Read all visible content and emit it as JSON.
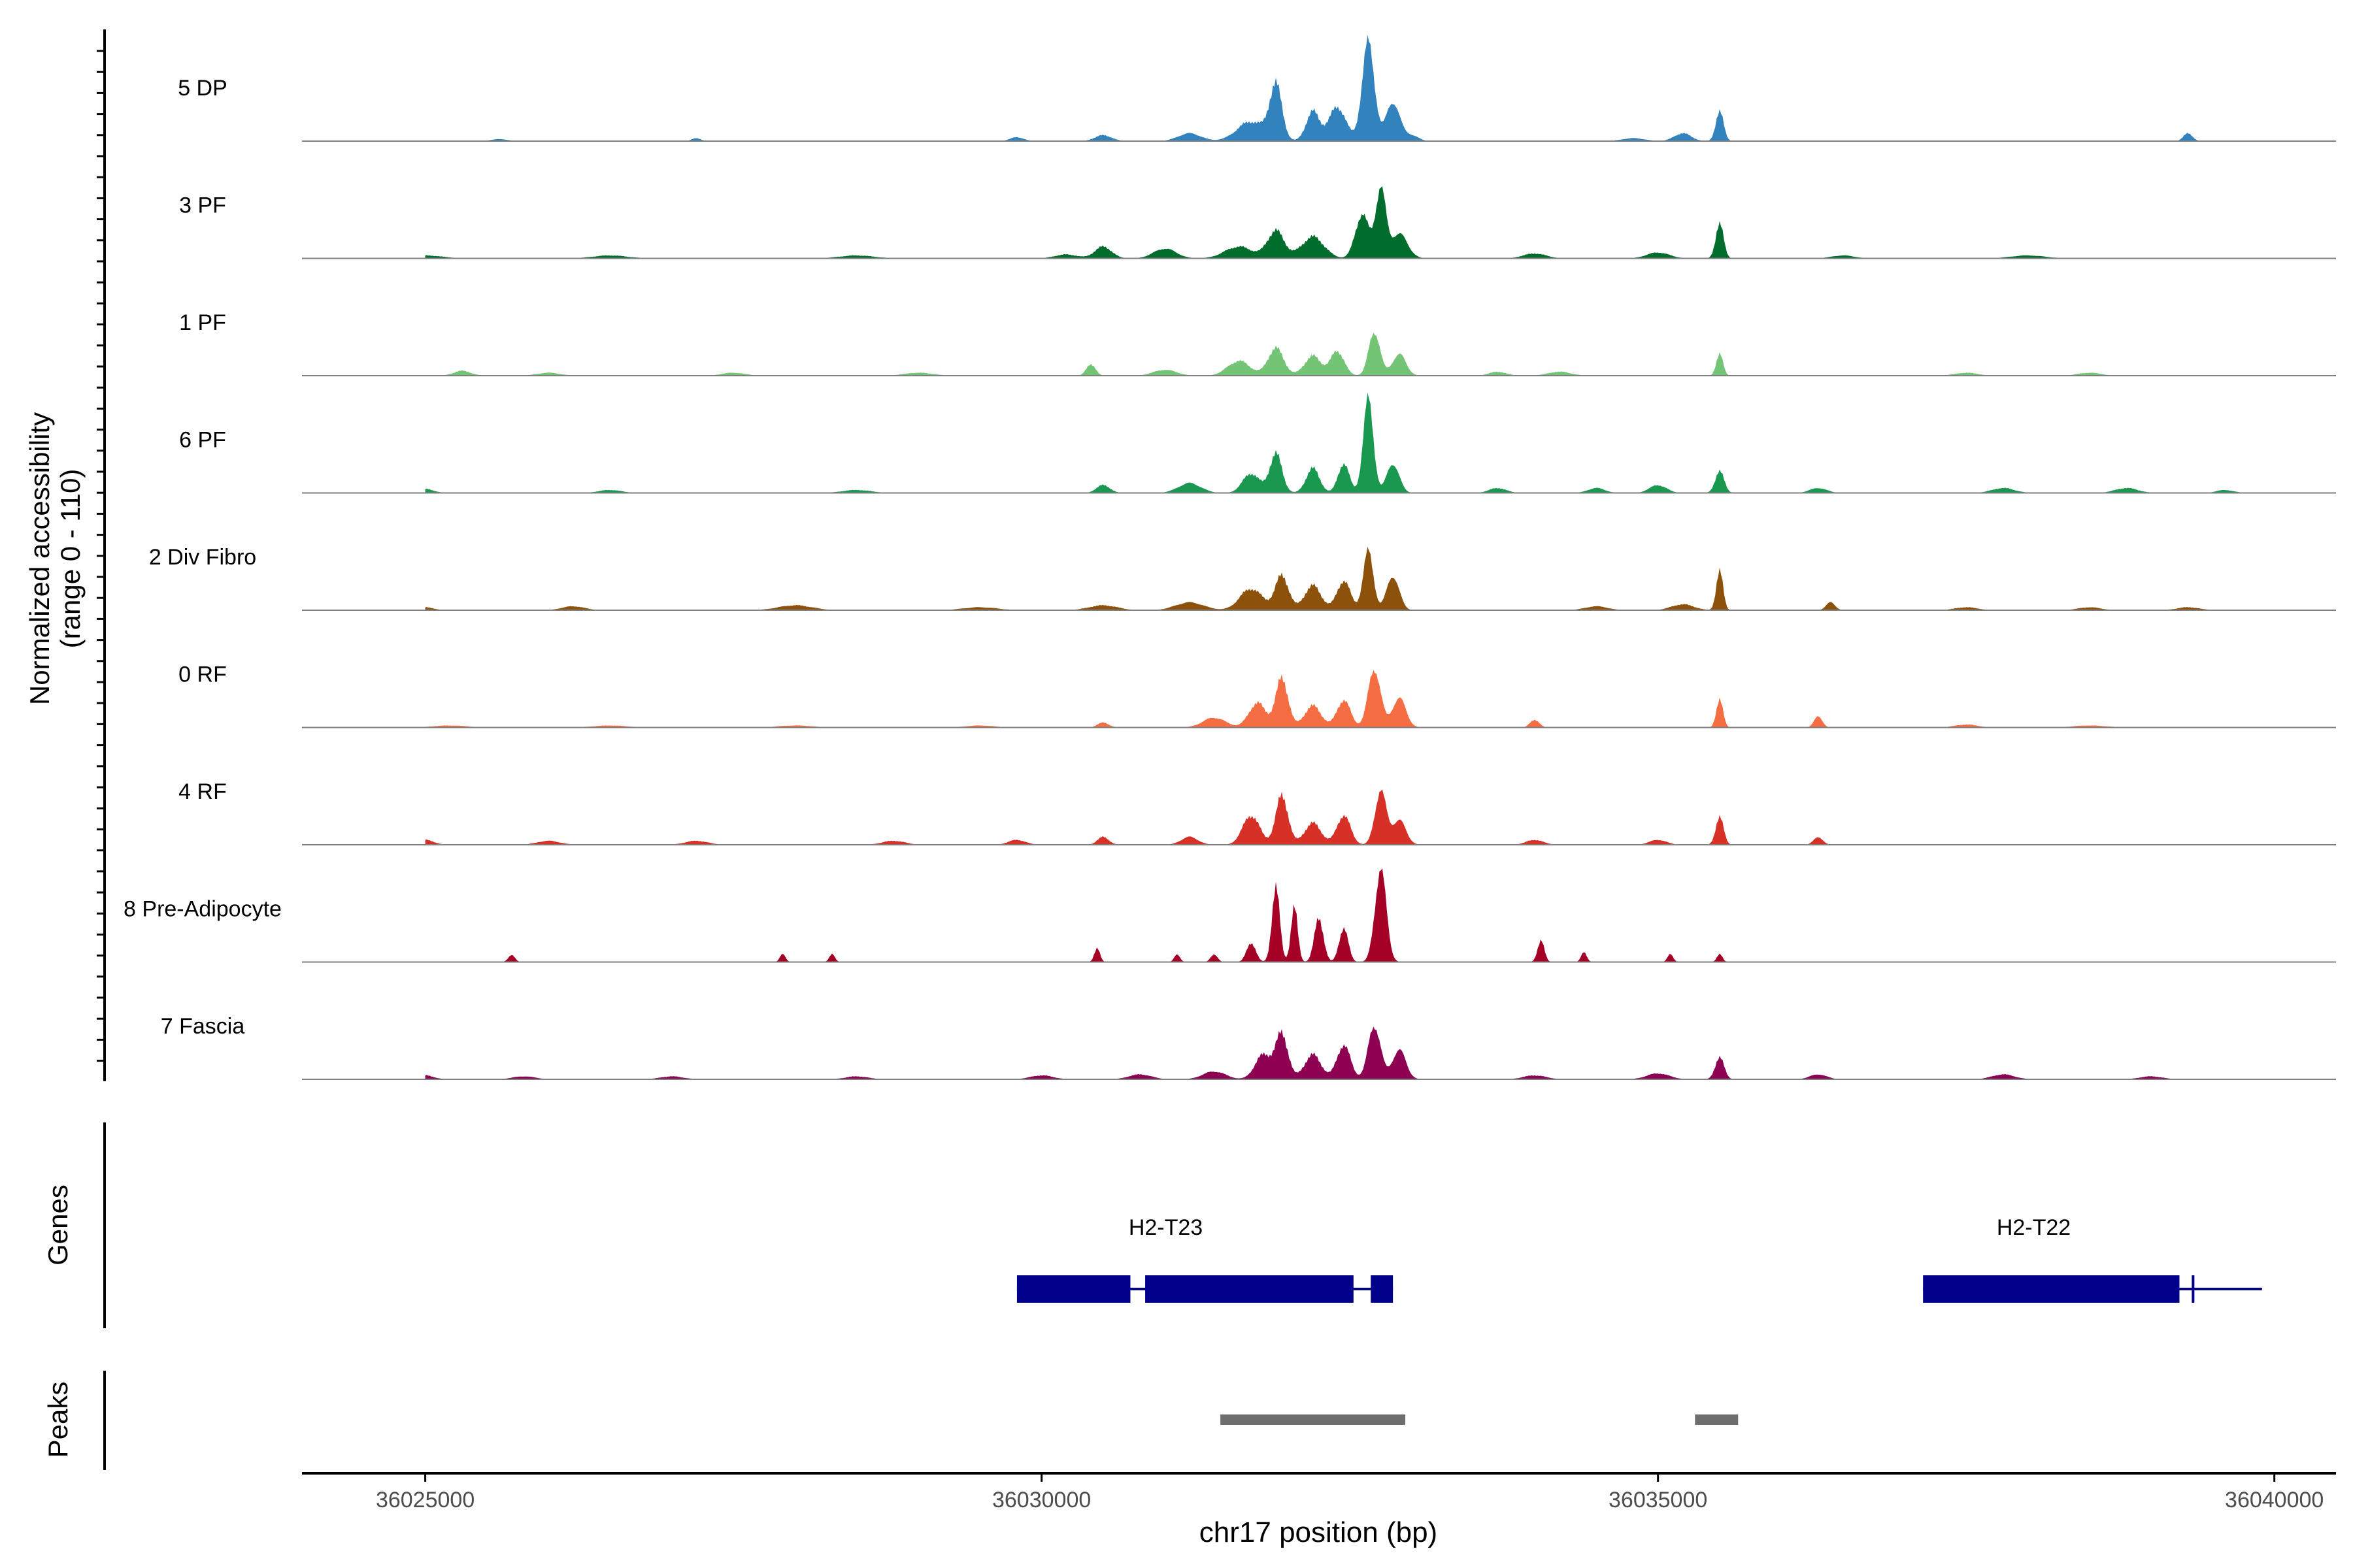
{
  "chart_data": {
    "type": "area",
    "title": "",
    "ylabel_line1": "Normalized accessibility",
    "ylabel_line2": "(range 0 - 110)",
    "y_range": [
      0,
      110
    ],
    "xlabel": "chr17 position (bp)",
    "xlim": [
      36024000,
      36040500
    ],
    "x_ticks": [
      36025000,
      36030000,
      36035000,
      36040000
    ],
    "x_tick_labels": [
      "36025000",
      "36030000",
      "36035000",
      "36040000"
    ],
    "tracks": [
      {
        "name": "5 DP",
        "color": "#3182BD",
        "scale": 1.0,
        "peaks": [
          [
            36029800,
            4,
            120
          ],
          [
            36030500,
            6,
            150
          ],
          [
            36031200,
            8,
            200
          ],
          [
            36031700,
            20,
            250
          ],
          [
            36031900,
            55,
            110
          ],
          [
            36032200,
            30,
            120
          ],
          [
            36032400,
            35,
            150
          ],
          [
            36032650,
            100,
            110
          ],
          [
            36032850,
            40,
            120
          ],
          [
            36033000,
            6,
            120
          ],
          [
            36034800,
            3,
            200
          ],
          [
            36035200,
            8,
            150
          ],
          [
            36035500,
            30,
            70
          ],
          [
            36039300,
            8,
            80
          ],
          [
            36027200,
            3,
            80
          ],
          [
            36025600,
            2,
            150
          ]
        ]
      },
      {
        "name": "3 PF",
        "color": "#006D2C",
        "scale": 1.0,
        "peaks": [
          [
            36025000,
            3,
            300
          ],
          [
            36026500,
            3,
            300
          ],
          [
            36028500,
            3,
            300
          ],
          [
            36030200,
            4,
            200
          ],
          [
            36030500,
            12,
            150
          ],
          [
            36031000,
            10,
            200
          ],
          [
            36031600,
            12,
            250
          ],
          [
            36031900,
            28,
            150
          ],
          [
            36032200,
            22,
            200
          ],
          [
            36032600,
            45,
            120
          ],
          [
            36032750,
            70,
            90
          ],
          [
            36032900,
            25,
            150
          ],
          [
            36034000,
            5,
            200
          ],
          [
            36035000,
            6,
            200
          ],
          [
            36035500,
            35,
            70
          ],
          [
            36036500,
            3,
            200
          ],
          [
            36038000,
            3,
            300
          ]
        ]
      },
      {
        "name": "1 PF",
        "color": "#74C476",
        "scale": 1.0,
        "peaks": [
          [
            36025300,
            5,
            150
          ],
          [
            36026000,
            3,
            200
          ],
          [
            36027500,
            3,
            200
          ],
          [
            36029000,
            3,
            250
          ],
          [
            36030400,
            12,
            80
          ],
          [
            36031000,
            6,
            200
          ],
          [
            36031600,
            15,
            200
          ],
          [
            36031900,
            28,
            140
          ],
          [
            36032200,
            20,
            150
          ],
          [
            36032400,
            25,
            120
          ],
          [
            36032700,
            45,
            100
          ],
          [
            36032900,
            22,
            120
          ],
          [
            36033700,
            4,
            150
          ],
          [
            36034200,
            4,
            200
          ],
          [
            36035500,
            22,
            60
          ],
          [
            36037500,
            3,
            200
          ],
          [
            36038500,
            3,
            200
          ]
        ]
      },
      {
        "name": "6 PF",
        "color": "#1A9850",
        "scale": 1.0,
        "peaks": [
          [
            36025000,
            4,
            150
          ],
          [
            36026500,
            3,
            200
          ],
          [
            36028500,
            3,
            250
          ],
          [
            36030500,
            8,
            120
          ],
          [
            36031200,
            10,
            200
          ],
          [
            36031700,
            20,
            150
          ],
          [
            36031900,
            40,
            110
          ],
          [
            36032200,
            25,
            120
          ],
          [
            36032450,
            30,
            100
          ],
          [
            36032650,
            95,
            90
          ],
          [
            36032850,
            30,
            110
          ],
          [
            36033700,
            5,
            150
          ],
          [
            36034500,
            5,
            150
          ],
          [
            36035000,
            8,
            150
          ],
          [
            36035500,
            22,
            80
          ],
          [
            36036300,
            5,
            150
          ],
          [
            36037800,
            5,
            200
          ],
          [
            36038800,
            5,
            200
          ],
          [
            36039600,
            3,
            150
          ]
        ]
      },
      {
        "name": "2 Div Fibro",
        "color": "#8C510A",
        "scale": 1.0,
        "peaks": [
          [
            36025000,
            3,
            150
          ],
          [
            36026200,
            4,
            200
          ],
          [
            36028000,
            5,
            300
          ],
          [
            36029500,
            3,
            300
          ],
          [
            36030500,
            5,
            250
          ],
          [
            36031200,
            8,
            250
          ],
          [
            36031700,
            22,
            200
          ],
          [
            36031950,
            35,
            120
          ],
          [
            36032200,
            25,
            150
          ],
          [
            36032450,
            30,
            120
          ],
          [
            36032650,
            60,
            90
          ],
          [
            36032850,
            35,
            110
          ],
          [
            36034500,
            4,
            200
          ],
          [
            36035200,
            6,
            200
          ],
          [
            36035500,
            40,
            60
          ],
          [
            36036400,
            8,
            80
          ],
          [
            36037500,
            3,
            200
          ],
          [
            36038500,
            3,
            200
          ],
          [
            36039300,
            3,
            200
          ]
        ]
      },
      {
        "name": "0 RF",
        "color": "#F46D43",
        "scale": 1.0,
        "peaks": [
          [
            36025200,
            2,
            300
          ],
          [
            36026500,
            2,
            300
          ],
          [
            36028000,
            2,
            300
          ],
          [
            36029500,
            2,
            250
          ],
          [
            36030500,
            5,
            100
          ],
          [
            36031400,
            10,
            200
          ],
          [
            36031750,
            25,
            150
          ],
          [
            36031950,
            50,
            110
          ],
          [
            36032200,
            22,
            150
          ],
          [
            36032450,
            28,
            120
          ],
          [
            36032700,
            60,
            110
          ],
          [
            36032900,
            30,
            120
          ],
          [
            36034000,
            8,
            80
          ],
          [
            36035500,
            28,
            60
          ],
          [
            36036300,
            12,
            70
          ],
          [
            36037500,
            3,
            200
          ],
          [
            36038500,
            2,
            300
          ]
        ]
      },
      {
        "name": "4 RF",
        "color": "#D73027",
        "scale": 1.0,
        "peaks": [
          [
            36025000,
            5,
            150
          ],
          [
            36026000,
            4,
            200
          ],
          [
            36027200,
            4,
            200
          ],
          [
            36028800,
            4,
            200
          ],
          [
            36029800,
            5,
            150
          ],
          [
            36030500,
            8,
            100
          ],
          [
            36031200,
            8,
            150
          ],
          [
            36031700,
            30,
            150
          ],
          [
            36031950,
            50,
            110
          ],
          [
            36032200,
            22,
            150
          ],
          [
            36032450,
            30,
            120
          ],
          [
            36032750,
            55,
            100
          ],
          [
            36032900,
            25,
            120
          ],
          [
            36034000,
            5,
            150
          ],
          [
            36035000,
            5,
            150
          ],
          [
            36035500,
            28,
            70
          ],
          [
            36036300,
            8,
            80
          ]
        ]
      },
      {
        "name": "8 Pre-Adipocyte",
        "color": "#A50026",
        "scale": 1.0,
        "peaks": [
          [
            36025700,
            7,
            60
          ],
          [
            36027900,
            8,
            50
          ],
          [
            36028300,
            8,
            50
          ],
          [
            36030450,
            14,
            50
          ],
          [
            36031100,
            8,
            50
          ],
          [
            36031400,
            8,
            60
          ],
          [
            36031700,
            20,
            80
          ],
          [
            36031900,
            75,
            70
          ],
          [
            36032050,
            55,
            60
          ],
          [
            36032250,
            45,
            80
          ],
          [
            36032450,
            35,
            80
          ],
          [
            36032750,
            95,
            100
          ],
          [
            36034050,
            22,
            60
          ],
          [
            36034400,
            10,
            50
          ],
          [
            36035100,
            8,
            50
          ],
          [
            36035500,
            8,
            50
          ]
        ]
      },
      {
        "name": "7 Fascia",
        "color": "#8E0152",
        "scale": 1.0,
        "peaks": [
          [
            36025000,
            4,
            150
          ],
          [
            36025800,
            3,
            200
          ],
          [
            36027000,
            3,
            200
          ],
          [
            36028500,
            3,
            200
          ],
          [
            36030000,
            4,
            200
          ],
          [
            36030800,
            5,
            200
          ],
          [
            36031400,
            8,
            200
          ],
          [
            36031800,
            25,
            150
          ],
          [
            36031950,
            45,
            110
          ],
          [
            36032200,
            25,
            150
          ],
          [
            36032450,
            35,
            120
          ],
          [
            36032700,
            55,
            110
          ],
          [
            36032900,
            30,
            120
          ],
          [
            36034000,
            4,
            200
          ],
          [
            36035000,
            6,
            200
          ],
          [
            36035500,
            22,
            80
          ],
          [
            36036300,
            5,
            150
          ],
          [
            36037800,
            5,
            200
          ],
          [
            36039000,
            3,
            200
          ]
        ]
      }
    ],
    "genes_label": "Genes",
    "genes": [
      {
        "name": "H2-T23",
        "start": 36029800,
        "end": 36032850,
        "exons": [
          [
            36029800,
            36030720
          ],
          [
            36030840,
            36032530
          ],
          [
            36032670,
            36032850
          ]
        ]
      },
      {
        "name": "H2-T22",
        "start": 36037150,
        "end": 36039900,
        "exons": [
          [
            36037150,
            36039230
          ],
          [
            36039330,
            36039350
          ]
        ]
      }
    ],
    "peaks_label": "Peaks",
    "peak_regions": [
      [
        36031450,
        36032950
      ],
      [
        36035300,
        36035650
      ]
    ],
    "colors": {
      "gene": "#00008B",
      "peak_region": "#6E6E6E",
      "baseline": "#808080",
      "axis": "#000000",
      "tick_text": "#4D4D4D"
    }
  }
}
